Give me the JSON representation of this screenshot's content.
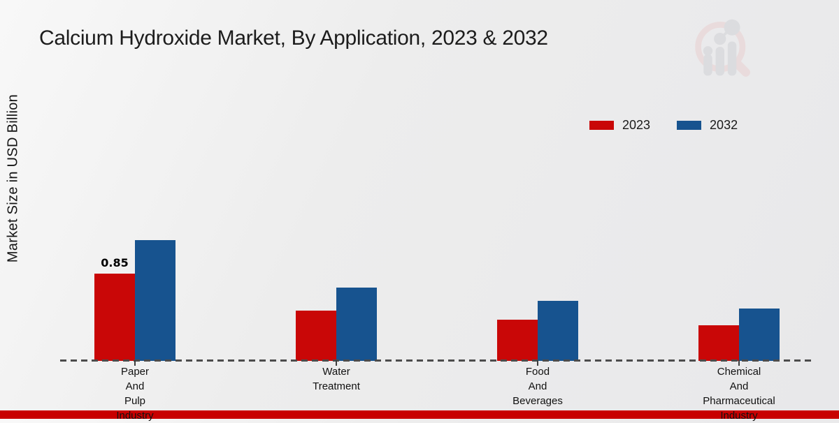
{
  "header": {
    "title": "Calcium Hydroxide Market, By Application, 2023 & 2032"
  },
  "colors": {
    "series_2023": "#c90707",
    "series_2032": "#17538f",
    "footer_strip": "#c80000",
    "axis_dash": "#4c4c4c",
    "background": "#ececec"
  },
  "icons": {
    "watermark": "market-research-future-logo-icon"
  },
  "chart_data": {
    "type": "bar",
    "title": "Calcium Hydroxide Market, By Application, 2023 & 2032",
    "xlabel": "",
    "ylabel": "Market Size in USD Billion",
    "categories": [
      "Paper And Pulp Industry",
      "Water Treatment",
      "Food And Beverages",
      "Chemical And Pharmaceutical Industry"
    ],
    "series": [
      {
        "name": "2023",
        "color": "#c90707",
        "values": [
          0.85,
          0.49,
          0.4,
          0.35
        ]
      },
      {
        "name": "2032",
        "color": "#17538f",
        "values": [
          1.18,
          0.72,
          0.59,
          0.51
        ]
      }
    ],
    "data_labels": [
      {
        "series_index": 0,
        "category_index": 0,
        "text": "0.85"
      }
    ],
    "ylim": [
      0,
      1.4
    ],
    "grid": false,
    "y_axis_ticks_visible": false,
    "baseline_style": "dashed",
    "legend_position": "top-right"
  }
}
